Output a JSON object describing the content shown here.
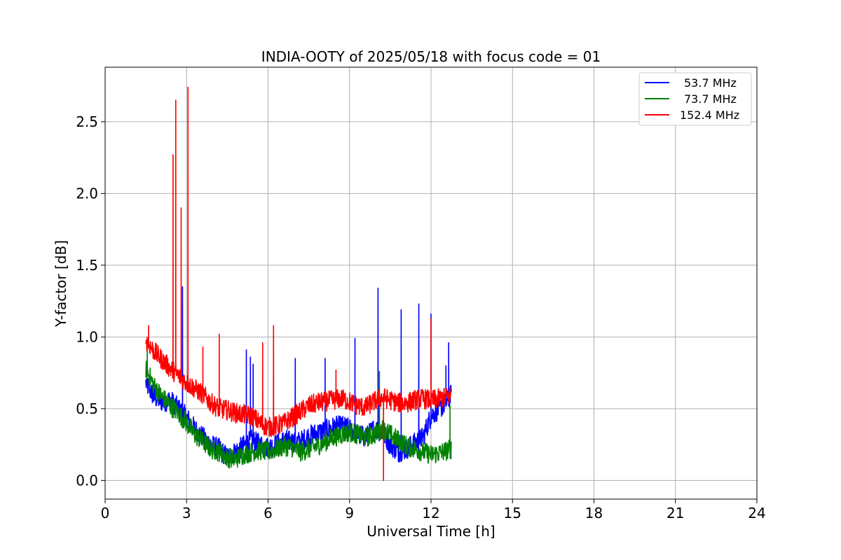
{
  "chart_data": {
    "type": "line",
    "title": "INDIA-OOTY of 2025/05/18 with focus code = 01",
    "xlabel": "Universal Time [h]",
    "ylabel": "Y-factor [dB]",
    "xlim": [
      0,
      24
    ],
    "ylim": [
      -0.13,
      2.88
    ],
    "xticks": [
      0,
      3,
      6,
      9,
      12,
      15,
      18,
      21,
      24
    ],
    "xtick_labels": [
      "0",
      "3",
      "6",
      "9",
      "12",
      "15",
      "18",
      "21",
      "24"
    ],
    "yticks": [
      0.0,
      0.5,
      1.0,
      1.5,
      2.0,
      2.5
    ],
    "ytick_labels": [
      "0.0",
      "0.5",
      "1.0",
      "1.5",
      "2.0",
      "2.5"
    ],
    "grid": true,
    "legend_position": "top-right",
    "series": [
      {
        "name": "53.7 MHz",
        "color": "#0000ff",
        "x": [
          1.5,
          1.8,
          2.1,
          2.4,
          2.7,
          3.0,
          3.3,
          3.6,
          3.9,
          4.2,
          4.5,
          4.8,
          5.1,
          5.4,
          5.7,
          6.0,
          6.3,
          6.6,
          6.9,
          7.2,
          7.5,
          7.8,
          8.1,
          8.4,
          8.7,
          9.0,
          9.3,
          9.6,
          9.9,
          10.2,
          10.5,
          10.8,
          11.1,
          11.4,
          11.7,
          12.0,
          12.3,
          12.6,
          12.75
        ],
        "y": [
          0.68,
          0.58,
          0.55,
          0.56,
          0.5,
          0.44,
          0.36,
          0.3,
          0.25,
          0.22,
          0.16,
          0.2,
          0.24,
          0.28,
          0.25,
          0.23,
          0.25,
          0.28,
          0.27,
          0.27,
          0.31,
          0.33,
          0.35,
          0.37,
          0.38,
          0.36,
          0.32,
          0.3,
          0.36,
          0.34,
          0.25,
          0.2,
          0.22,
          0.26,
          0.3,
          0.45,
          0.5,
          0.55,
          0.6
        ],
        "spikes": [
          {
            "x": 2.85,
            "y": 1.35
          },
          {
            "x": 5.2,
            "y": 0.91
          },
          {
            "x": 5.35,
            "y": 0.86
          },
          {
            "x": 5.45,
            "y": 0.81
          },
          {
            "x": 7.0,
            "y": 0.85
          },
          {
            "x": 8.1,
            "y": 0.85
          },
          {
            "x": 9.2,
            "y": 0.99
          },
          {
            "x": 10.05,
            "y": 1.34
          },
          {
            "x": 10.9,
            "y": 1.19
          },
          {
            "x": 11.55,
            "y": 1.23
          },
          {
            "x": 12.0,
            "y": 1.16
          },
          {
            "x": 12.55,
            "y": 0.8
          },
          {
            "x": 12.65,
            "y": 0.96
          }
        ]
      },
      {
        "name": "73.7 MHz",
        "color": "#008000",
        "x": [
          1.5,
          1.8,
          2.1,
          2.4,
          2.7,
          3.0,
          3.3,
          3.6,
          3.9,
          4.2,
          4.5,
          4.8,
          5.1,
          5.4,
          5.7,
          6.0,
          6.3,
          6.6,
          6.9,
          7.2,
          7.5,
          7.8,
          8.1,
          8.4,
          8.7,
          9.0,
          9.3,
          9.6,
          9.9,
          10.2,
          10.5,
          10.8,
          11.1,
          11.4,
          11.7,
          12.0,
          12.3,
          12.6,
          12.75
        ],
        "y": [
          0.78,
          0.66,
          0.58,
          0.52,
          0.47,
          0.4,
          0.32,
          0.27,
          0.22,
          0.2,
          0.16,
          0.15,
          0.18,
          0.2,
          0.21,
          0.2,
          0.22,
          0.24,
          0.23,
          0.2,
          0.22,
          0.24,
          0.27,
          0.3,
          0.32,
          0.34,
          0.32,
          0.3,
          0.32,
          0.36,
          0.32,
          0.28,
          0.24,
          0.22,
          0.2,
          0.18,
          0.19,
          0.21,
          0.22
        ],
        "spikes": [
          {
            "x": 1.55,
            "y": 0.91
          },
          {
            "x": 10.1,
            "y": 0.76
          },
          {
            "x": 12.7,
            "y": 0.52
          }
        ]
      },
      {
        "name": "152.4 MHz",
        "color": "#ff0000",
        "x": [
          1.5,
          1.8,
          2.1,
          2.4,
          2.7,
          3.0,
          3.3,
          3.6,
          3.9,
          4.2,
          4.5,
          4.8,
          5.1,
          5.4,
          5.7,
          6.0,
          6.3,
          6.6,
          6.9,
          7.2,
          7.5,
          7.8,
          8.1,
          8.4,
          8.7,
          9.0,
          9.3,
          9.6,
          9.9,
          10.2,
          10.5,
          10.8,
          11.1,
          11.4,
          11.7,
          12.0,
          12.3,
          12.6,
          12.75
        ],
        "y": [
          0.98,
          0.9,
          0.84,
          0.78,
          0.73,
          0.68,
          0.64,
          0.6,
          0.54,
          0.5,
          0.49,
          0.47,
          0.46,
          0.45,
          0.4,
          0.37,
          0.38,
          0.4,
          0.44,
          0.48,
          0.52,
          0.54,
          0.55,
          0.56,
          0.57,
          0.55,
          0.52,
          0.51,
          0.55,
          0.58,
          0.56,
          0.54,
          0.54,
          0.56,
          0.57,
          0.56,
          0.57,
          0.58,
          0.6
        ],
        "spikes": [
          {
            "x": 1.6,
            "y": 1.08
          },
          {
            "x": 2.5,
            "y": 2.27
          },
          {
            "x": 2.6,
            "y": 2.65
          },
          {
            "x": 2.8,
            "y": 1.9
          },
          {
            "x": 3.05,
            "y": 2.74
          },
          {
            "x": 3.6,
            "y": 0.93
          },
          {
            "x": 4.2,
            "y": 1.02
          },
          {
            "x": 5.8,
            "y": 0.96
          },
          {
            "x": 6.2,
            "y": 1.08
          },
          {
            "x": 8.5,
            "y": 0.77
          },
          {
            "x": 10.25,
            "y": 0.0
          },
          {
            "x": 12.0,
            "y": 1.13
          }
        ]
      }
    ]
  }
}
